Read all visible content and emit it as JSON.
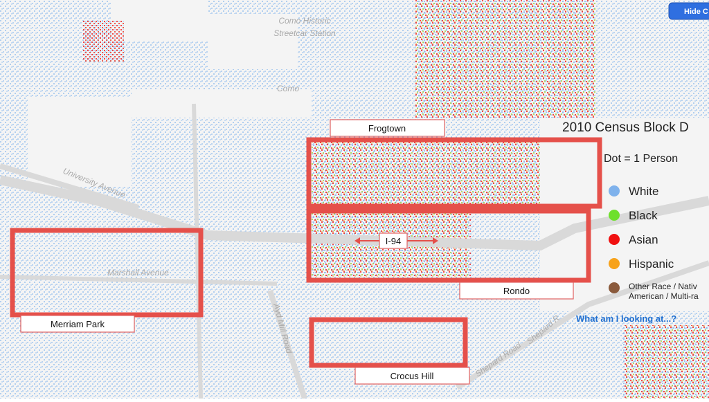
{
  "controls": {
    "hide_button": "Hide C"
  },
  "map_labels": {
    "station": [
      "Como Historic",
      "Streetcar Station"
    ],
    "como": "Como",
    "university": "University Avenue",
    "marshall": "Marshall Avenue",
    "ayd_mill": "Ayd Mill Road",
    "shepard_1": "Shepard Road",
    "shepard_2": "Shepard R"
  },
  "annotations": {
    "frogtown": "Frogtown",
    "i94": "I-94",
    "rondo": "Rondo",
    "merriam_park": "Merriam Park",
    "crocus_hill": "Crocus Hill"
  },
  "legend": {
    "title": "2010 Census Block D",
    "subtitle": "Dot = 1 Person",
    "items": [
      {
        "label": "White",
        "color": "#7fb2ec"
      },
      {
        "label": "Black",
        "color": "#6ee02c"
      },
      {
        "label": "Asian",
        "color": "#f01010"
      },
      {
        "label": "Hispanic",
        "color": "#f7a21a"
      },
      {
        "label": [
          "Other Race / Nativ",
          "American / Multi-ra"
        ],
        "color": "#8a5a3c"
      }
    ],
    "link": "What am I looking at...?"
  }
}
